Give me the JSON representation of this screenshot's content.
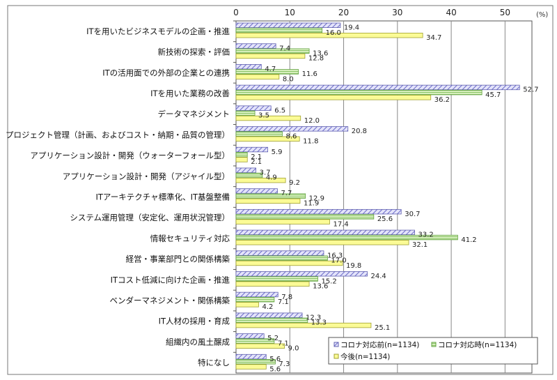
{
  "chart_data": {
    "type": "bar",
    "orientation": "horizontal",
    "unit_label": "(%)",
    "xlim": [
      0,
      55
    ],
    "ticks": [
      0,
      10,
      20,
      30,
      40,
      50
    ],
    "grid": true,
    "legend_placement": "bottom-right",
    "categories": [
      "ITを用いたビジネスモデルの企画・推進",
      "新技術の探索・評価",
      "ITの活用面での外部の企業との連携",
      "ITを用いた業務の改善",
      "データマネジメント",
      "プロジェクト管理（計画、およびコスト・納期・品質の管理）",
      "アプリケーション設計・開発（ウォーターフォール型）",
      "アプリケーション設計・開発（アジャイル型）",
      "ITアーキテクチャ標準化、IT基盤整備",
      "システム運用管理（安定化、運用状況管理）",
      "情報セキュリティ対応",
      "経営・事業部門との関係構築",
      "ITコスト低減に向けた企画・推進",
      "ベンダーマネジメント・関係構築",
      "IT人材の採用・育成",
      "組織内の風土醸成",
      "特になし"
    ],
    "series": [
      {
        "name": "コロナ対応前(n=1134)",
        "color": "#c8c8f0",
        "pattern": "diagonal-hatch",
        "values": [
          19.4,
          7.4,
          4.7,
          52.7,
          6.5,
          20.8,
          5.9,
          3.7,
          7.7,
          30.7,
          33.2,
          16.3,
          24.4,
          7.8,
          12.3,
          5.2,
          5.6
        ]
      },
      {
        "name": "コロナ対応時(n=1134)",
        "color": "#c6e6a8",
        "pattern": "horizontal-lines",
        "values": [
          16.0,
          13.6,
          11.6,
          45.7,
          3.5,
          8.6,
          2.1,
          4.9,
          12.9,
          25.6,
          41.2,
          17.0,
          15.2,
          7.1,
          13.3,
          7.1,
          7.3
        ]
      },
      {
        "name": "今後(n=1134)",
        "color": "#fbfb96",
        "pattern": "solid",
        "values": [
          34.7,
          12.8,
          8.0,
          36.2,
          12.0,
          11.8,
          2.1,
          9.2,
          11.9,
          17.4,
          32.1,
          19.8,
          13.6,
          4.2,
          25.1,
          9.0,
          5.6
        ]
      }
    ]
  }
}
